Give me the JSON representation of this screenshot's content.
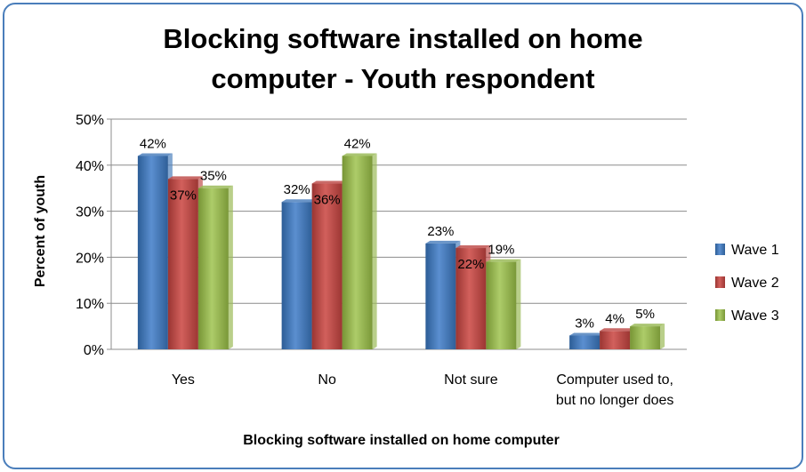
{
  "chart_data": {
    "type": "bar",
    "title_line1": "Blocking software installed on home",
    "title_line2": "computer - Youth respondent",
    "xlabel": "Blocking software installed on home computer",
    "ylabel": "Percent of youth",
    "categories": [
      [
        "Yes"
      ],
      [
        "No"
      ],
      [
        "Not sure"
      ],
      [
        "Computer used to,",
        "but no longer does"
      ]
    ],
    "series": [
      {
        "name": "Wave 1",
        "color": "#4f81bd",
        "values": [
          42,
          32,
          23,
          3
        ]
      },
      {
        "name": "Wave 2",
        "color": "#c0504d",
        "values": [
          37,
          36,
          22,
          4
        ]
      },
      {
        "name": "Wave 3",
        "color": "#9bbb59",
        "values": [
          35,
          42,
          19,
          5
        ]
      }
    ],
    "ylim": [
      0,
      50
    ],
    "yticks": [
      "0%",
      "10%",
      "20%",
      "30%",
      "40%",
      "50%"
    ],
    "value_suffix": "%",
    "grid": true,
    "legend_position": "right"
  }
}
